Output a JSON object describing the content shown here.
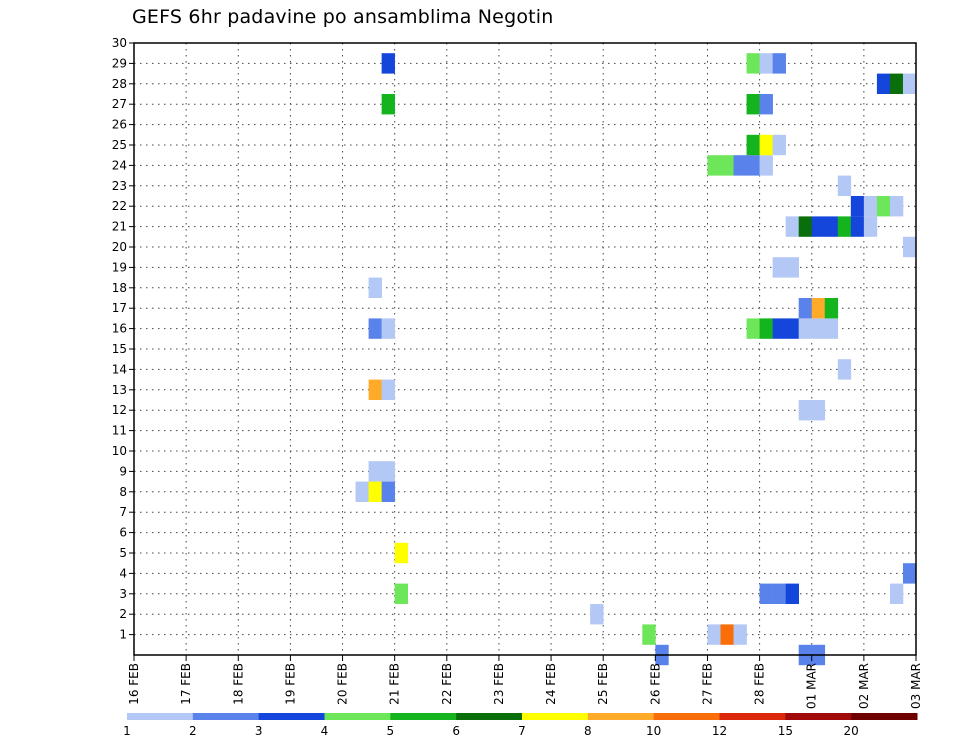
{
  "chart_data": {
    "type": "heatmap",
    "title": "GEFS 6hr padavine po ansamblima Negotin",
    "y_ticks": [
      1,
      2,
      3,
      4,
      5,
      6,
      7,
      8,
      9,
      10,
      11,
      12,
      13,
      14,
      15,
      16,
      17,
      18,
      19,
      20,
      21,
      22,
      23,
      24,
      25,
      26,
      27,
      28,
      29,
      30
    ],
    "ylim": [
      0,
      30
    ],
    "x_dates": [
      "16 FEB",
      "17 FEB",
      "18 FEB",
      "19 FEB",
      "20 FEB",
      "21 FEB",
      "22 FEB",
      "23 FEB",
      "24 FEB",
      "25 FEB",
      "26 FEB",
      "27 FEB",
      "28 FEB",
      "01 MAR",
      "02 MAR",
      "03 MAR"
    ],
    "grid": true,
    "colorbar": {
      "colors": [
        "#b4c8f5",
        "#5a82eb",
        "#1446dc",
        "#6ee65a",
        "#14b41e",
        "#0a6e0a",
        "#ffff00",
        "#ffaa28",
        "#fa6e0a",
        "#dc280a",
        "#a00a0a",
        "#6e0000"
      ],
      "labels": [
        "1",
        "2",
        "3",
        "4",
        "5",
        "6",
        "7",
        "8",
        "10",
        "12",
        "15",
        "20"
      ]
    },
    "cells": [
      {
        "m": 29,
        "d": "20 FEB",
        "h": 18,
        "c": 3
      },
      {
        "m": 27,
        "d": "20 FEB",
        "h": 18,
        "c": 5
      },
      {
        "m": 18,
        "d": "20 FEB",
        "h": 12,
        "c": 1
      },
      {
        "m": 16,
        "d": "20 FEB",
        "h": 12,
        "c": 2
      },
      {
        "m": 16,
        "d": "20 FEB",
        "h": 18,
        "c": 1
      },
      {
        "m": 13,
        "d": "20 FEB",
        "h": 12,
        "c": 8
      },
      {
        "m": 13,
        "d": "20 FEB",
        "h": 18,
        "c": 1
      },
      {
        "m": 9,
        "d": "20 FEB",
        "h": 12,
        "c": 1
      },
      {
        "m": 9,
        "d": "20 FEB",
        "h": 18,
        "c": 1
      },
      {
        "m": 8,
        "d": "20 FEB",
        "h": 6,
        "c": 1
      },
      {
        "m": 8,
        "d": "20 FEB",
        "h": 12,
        "c": 7
      },
      {
        "m": 8,
        "d": "20 FEB",
        "h": 18,
        "c": 2
      },
      {
        "m": 5,
        "d": "21 FEB",
        "h": 0,
        "c": 7
      },
      {
        "m": 3,
        "d": "21 FEB",
        "h": 0,
        "c": 4
      },
      {
        "m": 2,
        "d": "24 FEB",
        "h": 18,
        "c": 1
      },
      {
        "m": 1,
        "d": "25 FEB",
        "h": 18,
        "c": 4
      },
      {
        "m": 0,
        "d": "26 FEB",
        "h": 0,
        "c": 2
      },
      {
        "m": 1,
        "d": "27 FEB",
        "h": 0,
        "c": 1
      },
      {
        "m": 1,
        "d": "27 FEB",
        "h": 6,
        "c": 9
      },
      {
        "m": 1,
        "d": "27 FEB",
        "h": 12,
        "c": 1
      },
      {
        "m": 24,
        "d": "27 FEB",
        "h": 0,
        "c": 4
      },
      {
        "m": 24,
        "d": "27 FEB",
        "h": 6,
        "c": 4
      },
      {
        "m": 24,
        "d": "27 FEB",
        "h": 12,
        "c": 2
      },
      {
        "m": 24,
        "d": "27 FEB",
        "h": 18,
        "c": 2
      },
      {
        "m": 24,
        "d": "28 FEB",
        "h": 0,
        "c": 1
      },
      {
        "m": 29,
        "d": "27 FEB",
        "h": 18,
        "c": 4
      },
      {
        "m": 29,
        "d": "28 FEB",
        "h": 0,
        "c": 1
      },
      {
        "m": 29,
        "d": "28 FEB",
        "h": 6,
        "c": 2
      },
      {
        "m": 27,
        "d": "27 FEB",
        "h": 18,
        "c": 5
      },
      {
        "m": 27,
        "d": "28 FEB",
        "h": 0,
        "c": 2
      },
      {
        "m": 25,
        "d": "27 FEB",
        "h": 18,
        "c": 5
      },
      {
        "m": 25,
        "d": "28 FEB",
        "h": 0,
        "c": 7
      },
      {
        "m": 25,
        "d": "28 FEB",
        "h": 6,
        "c": 1
      },
      {
        "m": 16,
        "d": "27 FEB",
        "h": 18,
        "c": 4
      },
      {
        "m": 16,
        "d": "28 FEB",
        "h": 0,
        "c": 5
      },
      {
        "m": 16,
        "d": "28 FEB",
        "h": 6,
        "c": 3
      },
      {
        "m": 16,
        "d": "28 FEB",
        "h": 12,
        "c": 3
      },
      {
        "m": 16,
        "d": "28 FEB",
        "h": 18,
        "c": 1
      },
      {
        "m": 16,
        "d": "01 MAR",
        "h": 0,
        "c": 1
      },
      {
        "m": 16,
        "d": "01 MAR",
        "h": 6,
        "c": 1
      },
      {
        "m": 3,
        "d": "28 FEB",
        "h": 0,
        "c": 2
      },
      {
        "m": 3,
        "d": "28 FEB",
        "h": 6,
        "c": 2
      },
      {
        "m": 3,
        "d": "28 FEB",
        "h": 12,
        "c": 3
      },
      {
        "m": 19,
        "d": "28 FEB",
        "h": 6,
        "c": 1
      },
      {
        "m": 19,
        "d": "28 FEB",
        "h": 12,
        "c": 1
      },
      {
        "m": 21,
        "d": "28 FEB",
        "h": 12,
        "c": 1
      },
      {
        "m": 21,
        "d": "28 FEB",
        "h": 18,
        "c": 6
      },
      {
        "m": 21,
        "d": "01 MAR",
        "h": 0,
        "c": 3
      },
      {
        "m": 21,
        "d": "01 MAR",
        "h": 6,
        "c": 3
      },
      {
        "m": 21,
        "d": "01 MAR",
        "h": 12,
        "c": 5
      },
      {
        "m": 21,
        "d": "01 MAR",
        "h": 18,
        "c": 3
      },
      {
        "m": 21,
        "d": "02 MAR",
        "h": 0,
        "c": 1
      },
      {
        "m": 17,
        "d": "28 FEB",
        "h": 18,
        "c": 2
      },
      {
        "m": 17,
        "d": "01 MAR",
        "h": 0,
        "c": 8
      },
      {
        "m": 17,
        "d": "01 MAR",
        "h": 6,
        "c": 5
      },
      {
        "m": 12,
        "d": "28 FEB",
        "h": 18,
        "c": 1
      },
      {
        "m": 12,
        "d": "01 MAR",
        "h": 0,
        "c": 1
      },
      {
        "m": 0,
        "d": "28 FEB",
        "h": 18,
        "c": 2
      },
      {
        "m": 0,
        "d": "01 MAR",
        "h": 0,
        "c": 2
      },
      {
        "m": 23,
        "d": "01 MAR",
        "h": 12,
        "c": 1
      },
      {
        "m": 14,
        "d": "01 MAR",
        "h": 12,
        "c": 1
      },
      {
        "m": 22,
        "d": "01 MAR",
        "h": 18,
        "c": 3
      },
      {
        "m": 22,
        "d": "02 MAR",
        "h": 0,
        "c": 1
      },
      {
        "m": 22,
        "d": "02 MAR",
        "h": 6,
        "c": 4
      },
      {
        "m": 22,
        "d": "02 MAR",
        "h": 12,
        "c": 1
      },
      {
        "m": 28,
        "d": "02 MAR",
        "h": 6,
        "c": 3
      },
      {
        "m": 28,
        "d": "02 MAR",
        "h": 12,
        "c": 6
      },
      {
        "m": 28,
        "d": "02 MAR",
        "h": 18,
        "c": 1
      },
      {
        "m": 20,
        "d": "02 MAR",
        "h": 18,
        "c": 1
      },
      {
        "m": 4,
        "d": "02 MAR",
        "h": 18,
        "c": 2
      },
      {
        "m": 3,
        "d": "02 MAR",
        "h": 12,
        "c": 1
      }
    ]
  }
}
